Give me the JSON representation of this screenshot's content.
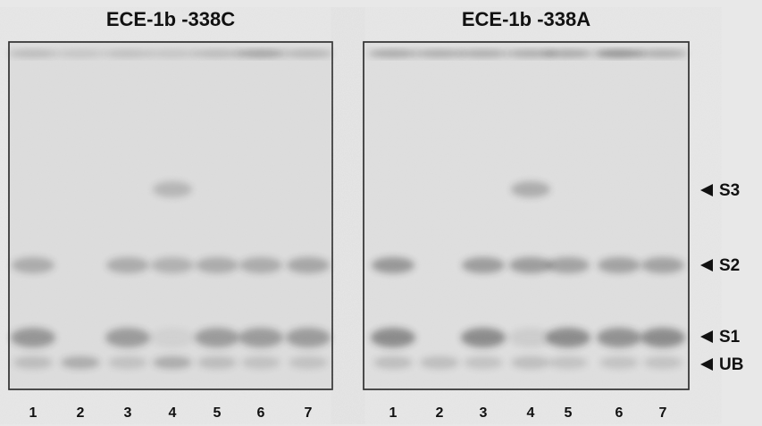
{
  "panels": [
    {
      "title": "ECE-1b -338C",
      "lanes": [
        "1",
        "2",
        "3",
        "4",
        "5",
        "6",
        "7"
      ]
    },
    {
      "title": "ECE-1b -338A",
      "lanes": [
        "1",
        "2",
        "3",
        "4",
        "5",
        "6",
        "7"
      ]
    }
  ],
  "band_labels": [
    "S3",
    "S2",
    "S1",
    "UB"
  ]
}
